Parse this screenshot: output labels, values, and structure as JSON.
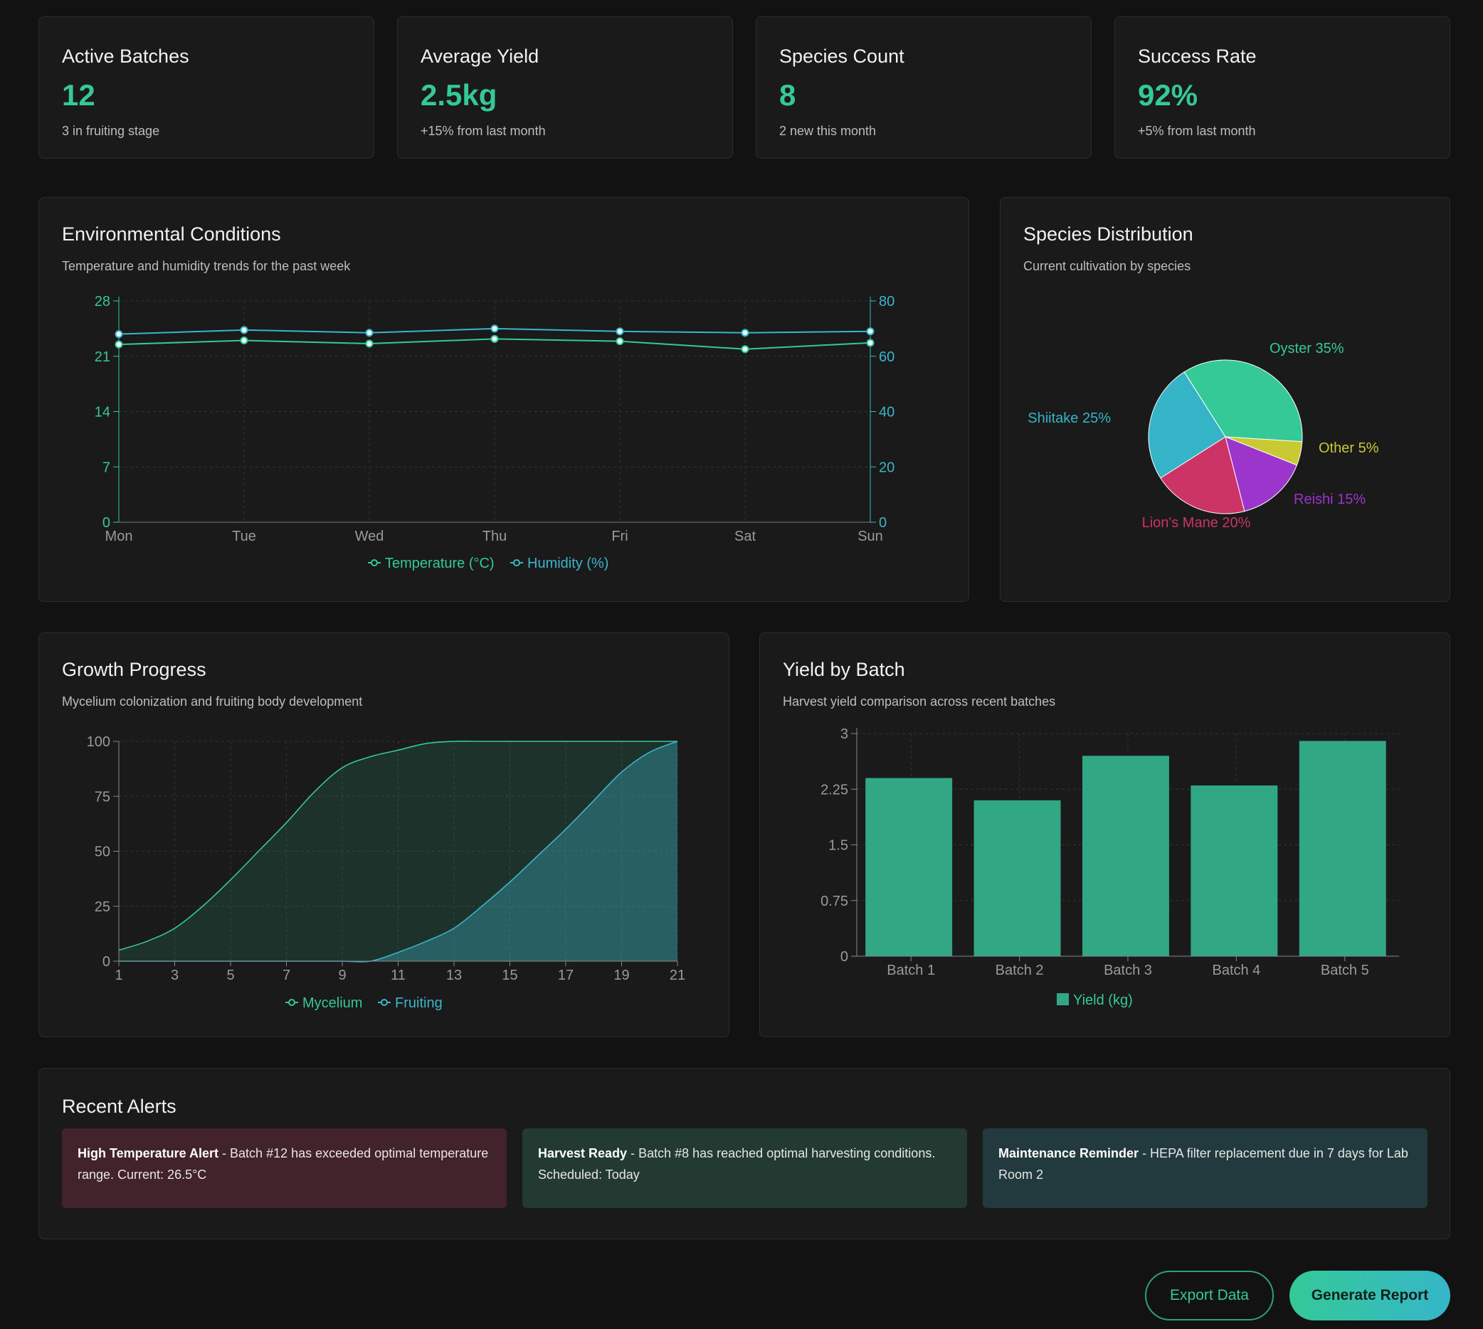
{
  "colors": {
    "accent": "#34c997",
    "humidity": "#3bb5cc",
    "oyster": "#34c997",
    "shiitake": "#35b4c8",
    "lions_mane": "#cc3466",
    "reishi": "#9b35cc",
    "other": "#c9c934",
    "bar": "#31a883"
  },
  "stats": [
    {
      "title": "Active Batches",
      "value": "12",
      "sub": "3 in fruiting stage"
    },
    {
      "title": "Average Yield",
      "value": "2.5kg",
      "sub": "+15% from last month"
    },
    {
      "title": "Species Count",
      "value": "8",
      "sub": "2 new this month"
    },
    {
      "title": "Success Rate",
      "value": "92%",
      "sub": "+5% from last month"
    }
  ],
  "environment": {
    "title": "Environmental Conditions",
    "subtitle": "Temperature and humidity trends for the past week",
    "legend": [
      "Temperature (°C)",
      "Humidity (%)"
    ]
  },
  "species": {
    "title": "Species Distribution",
    "subtitle": "Current cultivation by species"
  },
  "growth": {
    "title": "Growth Progress",
    "subtitle": "Mycelium colonization and fruiting body development",
    "legend": [
      "Mycelium",
      "Fruiting"
    ]
  },
  "yield": {
    "title": "Yield by Batch",
    "subtitle": "Harvest yield comparison across recent batches",
    "legend": "Yield (kg)"
  },
  "chart_data": [
    {
      "type": "line",
      "categories": [
        "Mon",
        "Tue",
        "Wed",
        "Thu",
        "Fri",
        "Sat",
        "Sun"
      ],
      "series": [
        {
          "name": "Temperature (°C)",
          "axis": "left",
          "values": [
            22.5,
            23.0,
            22.6,
            23.2,
            22.9,
            21.9,
            22.7
          ]
        },
        {
          "name": "Humidity (%)",
          "axis": "right",
          "values": [
            68,
            69.5,
            68.5,
            70,
            69,
            68.5,
            69
          ]
        }
      ],
      "y_left": {
        "ticks": [
          0,
          7,
          14,
          21,
          28
        ],
        "range": [
          0,
          28
        ]
      },
      "y_right": {
        "ticks": [
          0,
          20,
          40,
          60,
          80
        ],
        "range": [
          0,
          80
        ]
      },
      "grid": true,
      "legend": "bottom"
    },
    {
      "type": "pie",
      "slices": [
        {
          "label": "Oyster 35%",
          "value": 35
        },
        {
          "label": "Other 5%",
          "value": 5
        },
        {
          "label": "Reishi 15%",
          "value": 15
        },
        {
          "label": "Lion's Mane 20%",
          "value": 20
        },
        {
          "label": "Shiitake 25%",
          "value": 25
        }
      ]
    },
    {
      "type": "area",
      "x": [
        1,
        2,
        3,
        4,
        5,
        6,
        7,
        8,
        9,
        10,
        11,
        12,
        13,
        14,
        15,
        16,
        17,
        18,
        19,
        20,
        21
      ],
      "x_ticks": [
        1,
        3,
        5,
        7,
        9,
        11,
        13,
        15,
        17,
        19,
        21
      ],
      "series": [
        {
          "name": "Mycelium",
          "values": [
            5,
            9,
            15,
            25,
            37,
            50,
            63,
            77,
            88,
            93,
            96,
            99,
            100,
            100,
            100,
            100,
            100,
            100,
            100,
            100,
            100
          ]
        },
        {
          "name": "Fruiting",
          "values": [
            0,
            0,
            0,
            0,
            0,
            0,
            0,
            0,
            0,
            0,
            4,
            9,
            15,
            25,
            36,
            48,
            60,
            73,
            86,
            95,
            100
          ]
        }
      ],
      "y_ticks": [
        0,
        25,
        50,
        75,
        100
      ],
      "ylim": [
        0,
        100
      ],
      "grid": true,
      "legend": "bottom"
    },
    {
      "type": "bar",
      "categories": [
        "Batch 1",
        "Batch 2",
        "Batch 3",
        "Batch 4",
        "Batch 5"
      ],
      "series": [
        {
          "name": "Yield (kg)",
          "values": [
            2.4,
            2.1,
            2.7,
            2.3,
            2.9
          ]
        }
      ],
      "y_ticks": [
        "0",
        "0.75",
        "1.5",
        "2.25",
        "3"
      ],
      "ylim": [
        0,
        3
      ],
      "grid": true,
      "legend": "bottom"
    }
  ],
  "alerts": {
    "title": "Recent Alerts",
    "items": [
      {
        "heading": "High Temperature Alert",
        "text": " - Batch #12 has exceeded optimal temperature range. Current: 26.5°C"
      },
      {
        "heading": "Harvest Ready",
        "text": " - Batch #8 has reached optimal harvesting conditions. Scheduled: Today"
      },
      {
        "heading": "Maintenance Reminder",
        "text": " - HEPA filter replacement due in 7 days for Lab Room 2"
      }
    ]
  },
  "actions": {
    "export": "Export Data",
    "report": "Generate Report"
  }
}
